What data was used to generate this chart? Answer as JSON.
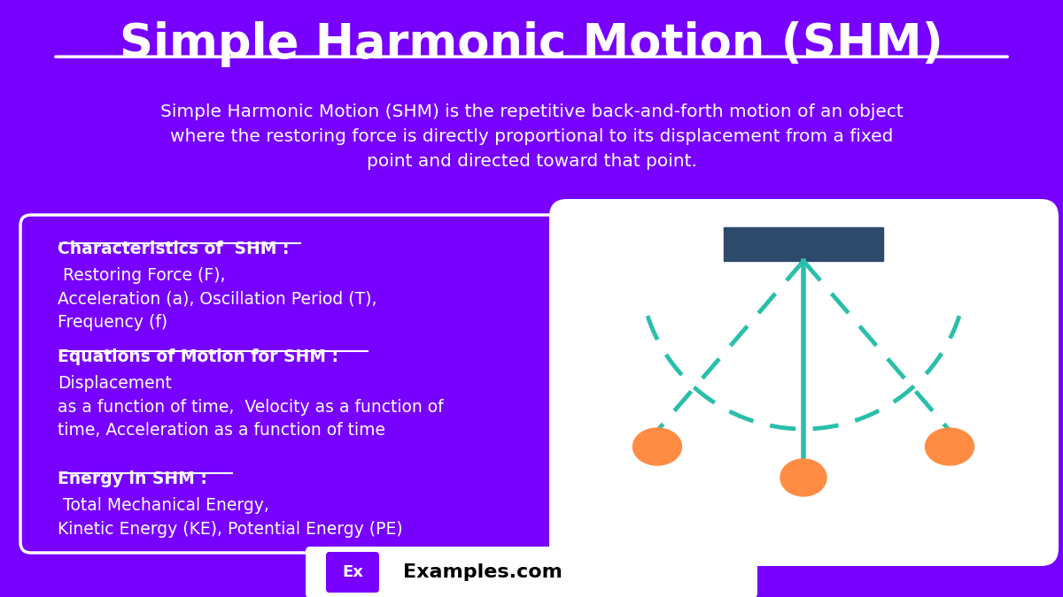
{
  "bg_color": "#7700ff",
  "title": "Simple Harmonic Motion (SHM)",
  "title_color": "#ffffff",
  "subtitle": "Simple Harmonic Motion (SHM) is the repetitive back-and-forth motion of an object\nwhere the restoring force is directly proportional to its displacement from a fixed\npoint and directed toward that point.",
  "subtitle_color": "#ffffff",
  "box_bg": "#7700ff",
  "box_border": "#ffffff",
  "characteristics_bold": "Characteristics of  SHM :",
  "characteristics_normal": " Restoring Force (F),\nAcceleration (a), Oscillation Period (T),\nFrequency (f)",
  "equations_bold": "Equations of Motion for SHM :",
  "equations_normal": "Displacement\nas a function of time,  Velocity as a function of\ntime, Acceleration as a function of time",
  "energy_bold": "Energy in SHM :",
  "energy_normal": " Total Mechanical Energy,\nKinetic Energy (KE), Potential Energy (PE)",
  "pendulum_bg": "#ffffff",
  "pendulum_bar_color": "#2d4a6b",
  "pendulum_string_color": "#2abfaa",
  "pendulum_ball_color": "#ff8c42",
  "footer_bg": "#ffffff",
  "footer_text": "Examples.com",
  "footer_ex_bg": "#7700ff",
  "footer_ex_color": "#ffffff"
}
